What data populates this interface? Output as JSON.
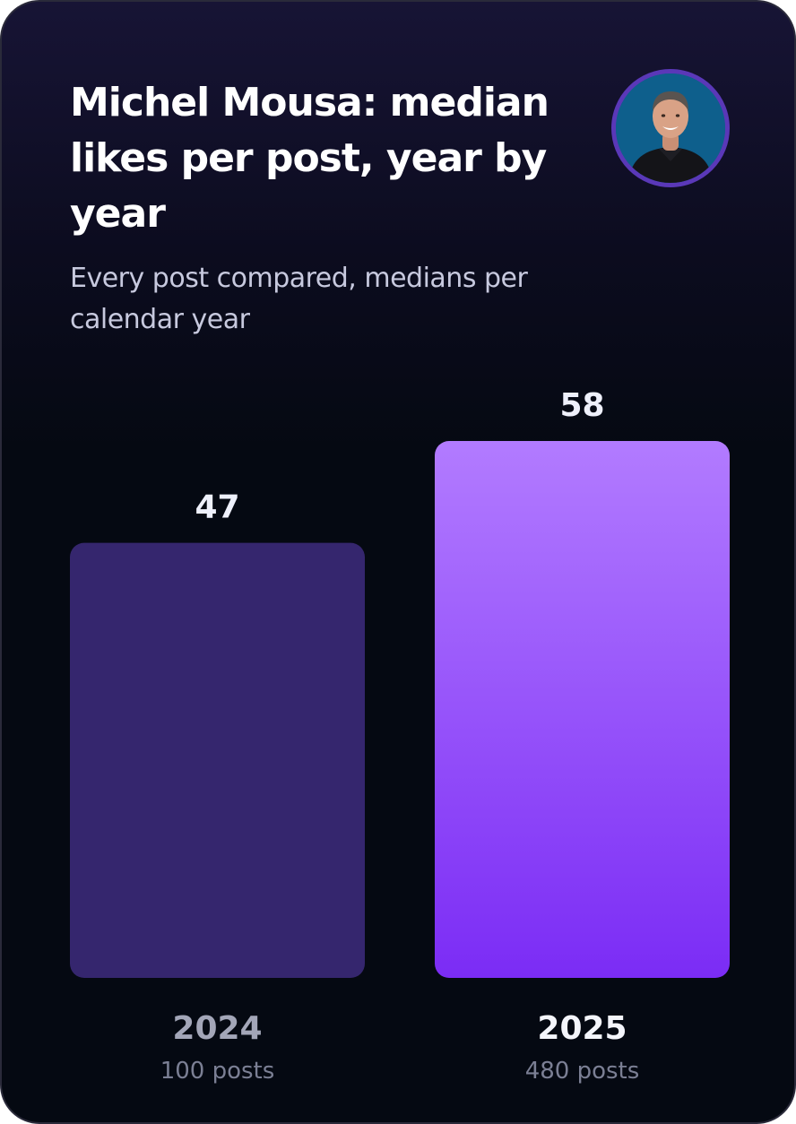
{
  "header": {
    "title": "Michel Mousa: median likes per post, year by year",
    "subtitle": "Every post compared, medians per calendar year",
    "avatar_icon": "person-portrait-icon"
  },
  "chart_data": {
    "type": "bar",
    "title": "Michel Mousa: median likes per post, year by year",
    "subtitle": "Every post compared, medians per calendar year",
    "categories": [
      "2024",
      "2025"
    ],
    "values": [
      47,
      58
    ],
    "value_labels": [
      "47",
      "58"
    ],
    "sublabels": [
      "100 posts",
      "480 posts"
    ],
    "ylim": [
      0,
      58
    ],
    "grid": false,
    "legend": "none",
    "bar_colors": [
      {
        "top": "#35266e",
        "bottom": "#35266e"
      },
      {
        "top": "#b27bff",
        "bottom": "#7b2cf5"
      }
    ],
    "year_label_colors": [
      "#a3a6b8",
      "#f4f5fb"
    ]
  }
}
